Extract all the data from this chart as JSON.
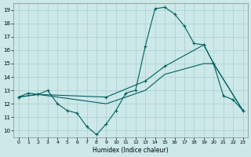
{
  "xlabel": "Humidex (Indice chaleur)",
  "background_color": "#cce8e8",
  "grid_color": "#aacfcf",
  "line_color": "#006060",
  "xlim": [
    -0.5,
    23.5
  ],
  "ylim": [
    9.5,
    19.5
  ],
  "xticks": [
    0,
    1,
    2,
    3,
    4,
    5,
    6,
    7,
    8,
    9,
    10,
    11,
    12,
    13,
    14,
    15,
    16,
    17,
    18,
    19,
    20,
    21,
    22,
    23
  ],
  "yticks": [
    10,
    11,
    12,
    13,
    14,
    15,
    16,
    17,
    18,
    19
  ],
  "line1_x": [
    0,
    1,
    2,
    3,
    4,
    5,
    6,
    7,
    8,
    9,
    10,
    11,
    12,
    13,
    14,
    15,
    16,
    17,
    18,
    19,
    20,
    21,
    22,
    23
  ],
  "line1_y": [
    12.5,
    12.8,
    12.7,
    13.0,
    12.0,
    11.5,
    11.3,
    10.3,
    9.7,
    10.5,
    11.5,
    12.8,
    13.0,
    16.3,
    19.1,
    19.2,
    18.7,
    17.8,
    16.5,
    16.4,
    15.0,
    12.6,
    12.3,
    11.5
  ],
  "line2_x": [
    0,
    2,
    9,
    13,
    15,
    19,
    20,
    23
  ],
  "line2_y": [
    12.5,
    12.7,
    12.5,
    13.7,
    14.8,
    16.4,
    15.0,
    11.5
  ],
  "line3_x": [
    0,
    2,
    9,
    13,
    15,
    19,
    20,
    23
  ],
  "line3_y": [
    12.5,
    12.7,
    12.0,
    13.0,
    14.2,
    15.0,
    15.0,
    11.5
  ]
}
